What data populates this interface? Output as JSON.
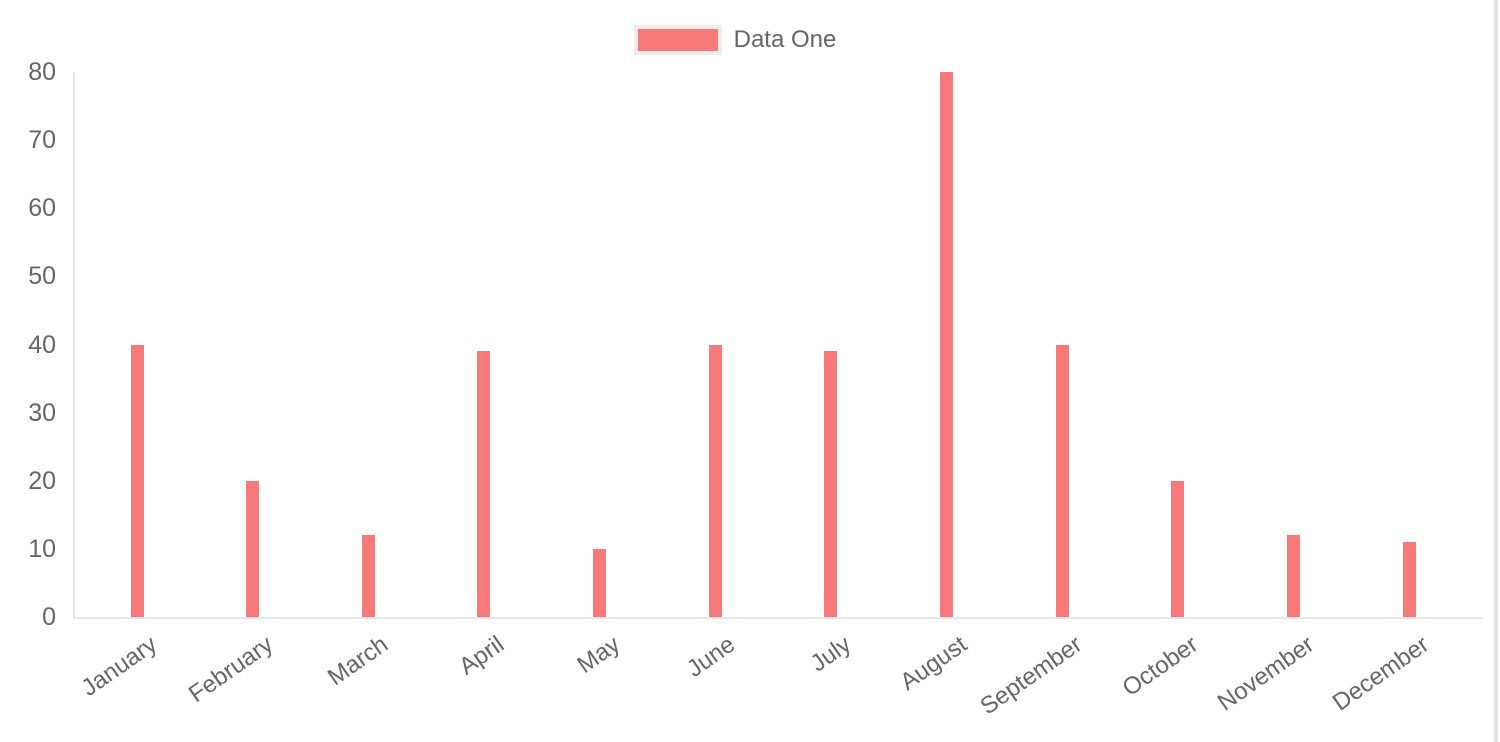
{
  "page": {
    "background": "#ffffff"
  },
  "legend": {
    "position": "top",
    "items": [
      {
        "label": "Data One",
        "swatch_color": "#f87979",
        "swatch_border_color": "#ededed"
      }
    ]
  },
  "chart_data": {
    "type": "bar",
    "title": "",
    "xlabel": "",
    "ylabel": "",
    "categories": [
      "January",
      "February",
      "March",
      "April",
      "May",
      "June",
      "July",
      "August",
      "September",
      "October",
      "November",
      "December"
    ],
    "series": [
      {
        "name": "Data One",
        "color": "#f87979",
        "values": [
          40,
          20,
          12,
          39,
          10,
          40,
          39,
          80,
          40,
          20,
          12,
          11
        ]
      }
    ],
    "ylim": [
      0,
      80
    ],
    "yticks": [
      0,
      10,
      20,
      30,
      40,
      50,
      60,
      70,
      80
    ],
    "grid": false,
    "legend_position": "top",
    "x_tick_rotation_deg": -35,
    "axis_text_color": "#666666",
    "axis_line_color": "#e6e6e6"
  }
}
